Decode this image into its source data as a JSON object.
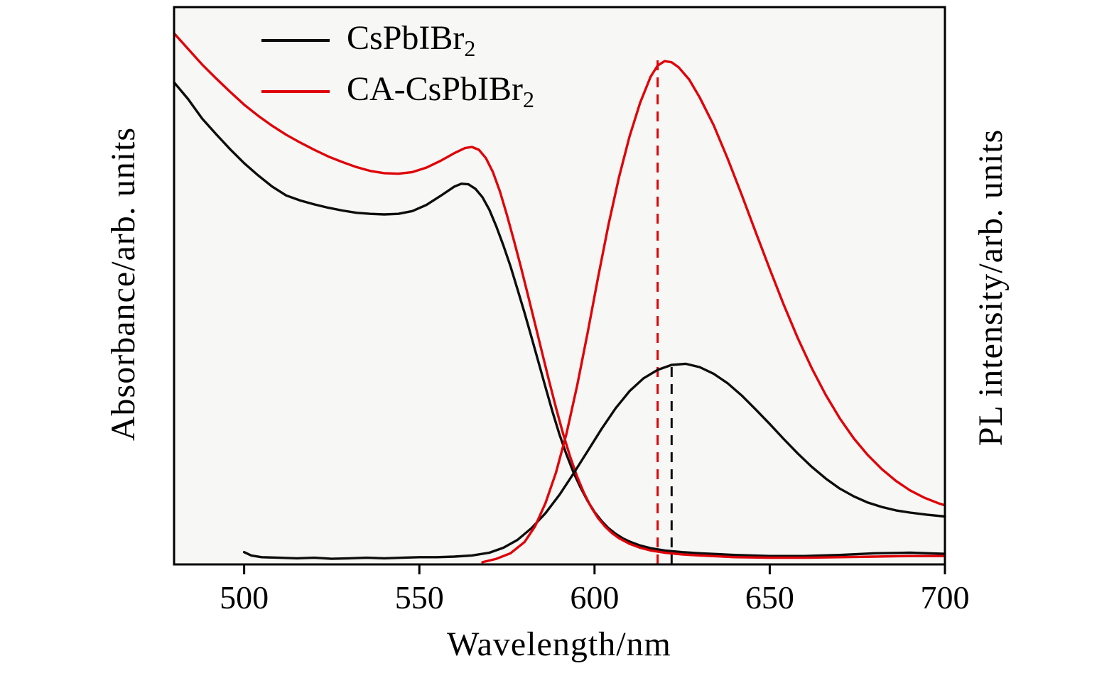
{
  "figure": {
    "background": "#ffffff",
    "plot_background": "#f7f7f5",
    "frame_color": "#000000",
    "accent_red": "#df0309",
    "accent_black": "#0d0d0d"
  },
  "chart_data": {
    "type": "line",
    "title": "",
    "xlabel": "Wavelength/nm",
    "ylabel_left": "Absorbance/arb. units",
    "ylabel_right": "PL intensity/arb. units",
    "xlim": [
      480,
      700
    ],
    "ylim": [
      0,
      1
    ],
    "x_ticks": [
      500,
      550,
      600,
      650,
      700
    ],
    "grid": false,
    "legend_position": "top-left",
    "legend": [
      {
        "label_base": "CsPbIBr",
        "label_sub": "2",
        "color": "#0d0d0d"
      },
      {
        "label_base": "CA-CsPbIBr",
        "label_sub": "2",
        "color": "#df0309"
      }
    ],
    "annotations": [
      {
        "type": "vline",
        "name": "pl-peak-CA-CsPbIBr2",
        "x": 618,
        "y0": 0,
        "y1": 0.91,
        "color": "#df0309",
        "dash": true
      },
      {
        "type": "vline",
        "name": "pl-peak-CsPbIBr2",
        "x": 622,
        "y0": 0,
        "y1": 0.362,
        "color": "#0d0d0d",
        "dash": true
      }
    ],
    "series": [
      {
        "name": "CsPbIBr2-absorbance",
        "axis": "left",
        "color": "#0d0d0d",
        "points": [
          [
            480,
            0.865
          ],
          [
            484,
            0.835
          ],
          [
            488,
            0.8
          ],
          [
            492,
            0.772
          ],
          [
            496,
            0.745
          ],
          [
            500,
            0.72
          ],
          [
            504,
            0.698
          ],
          [
            508,
            0.678
          ],
          [
            512,
            0.662
          ],
          [
            516,
            0.653
          ],
          [
            520,
            0.646
          ],
          [
            524,
            0.64
          ],
          [
            528,
            0.635
          ],
          [
            532,
            0.631
          ],
          [
            536,
            0.629
          ],
          [
            540,
            0.628
          ],
          [
            544,
            0.629
          ],
          [
            548,
            0.634
          ],
          [
            552,
            0.645
          ],
          [
            556,
            0.661
          ],
          [
            560,
            0.678
          ],
          [
            562,
            0.683
          ],
          [
            564,
            0.682
          ],
          [
            566,
            0.674
          ],
          [
            568,
            0.659
          ],
          [
            570,
            0.636
          ],
          [
            572,
            0.606
          ],
          [
            574,
            0.572
          ],
          [
            576,
            0.535
          ],
          [
            578,
            0.494
          ],
          [
            580,
            0.452
          ],
          [
            582,
            0.408
          ],
          [
            584,
            0.363
          ],
          [
            586,
            0.318
          ],
          [
            588,
            0.274
          ],
          [
            590,
            0.233
          ],
          [
            592,
            0.197
          ],
          [
            594,
            0.165
          ],
          [
            596,
            0.138
          ],
          [
            598,
            0.114
          ],
          [
            600,
            0.094
          ],
          [
            602,
            0.078
          ],
          [
            604,
            0.065
          ],
          [
            606,
            0.055
          ],
          [
            608,
            0.047
          ],
          [
            610,
            0.041
          ],
          [
            613,
            0.034
          ],
          [
            616,
            0.029
          ],
          [
            620,
            0.025
          ],
          [
            625,
            0.022
          ],
          [
            630,
            0.02
          ],
          [
            640,
            0.017
          ],
          [
            650,
            0.015
          ],
          [
            660,
            0.015
          ],
          [
            670,
            0.017
          ],
          [
            680,
            0.02
          ],
          [
            690,
            0.021
          ],
          [
            700,
            0.019
          ]
        ]
      },
      {
        "name": "CA-CsPbIBr2-absorbance",
        "axis": "left",
        "color": "#df0309",
        "points": [
          [
            480,
            0.953
          ],
          [
            484,
            0.925
          ],
          [
            488,
            0.897
          ],
          [
            492,
            0.872
          ],
          [
            496,
            0.848
          ],
          [
            500,
            0.825
          ],
          [
            504,
            0.805
          ],
          [
            508,
            0.787
          ],
          [
            512,
            0.771
          ],
          [
            516,
            0.757
          ],
          [
            520,
            0.744
          ],
          [
            524,
            0.732
          ],
          [
            528,
            0.722
          ],
          [
            532,
            0.713
          ],
          [
            536,
            0.706
          ],
          [
            540,
            0.702
          ],
          [
            544,
            0.701
          ],
          [
            548,
            0.704
          ],
          [
            552,
            0.712
          ],
          [
            556,
            0.724
          ],
          [
            560,
            0.738
          ],
          [
            563,
            0.747
          ],
          [
            565,
            0.749
          ],
          [
            567,
            0.744
          ],
          [
            569,
            0.729
          ],
          [
            571,
            0.704
          ],
          [
            573,
            0.669
          ],
          [
            575,
            0.627
          ],
          [
            577,
            0.581
          ],
          [
            579,
            0.533
          ],
          [
            581,
            0.483
          ],
          [
            583,
            0.432
          ],
          [
            585,
            0.381
          ],
          [
            587,
            0.33
          ],
          [
            589,
            0.281
          ],
          [
            591,
            0.235
          ],
          [
            593,
            0.194
          ],
          [
            595,
            0.158
          ],
          [
            597,
            0.128
          ],
          [
            599,
            0.103
          ],
          [
            601,
            0.083
          ],
          [
            603,
            0.068
          ],
          [
            605,
            0.056
          ],
          [
            607,
            0.047
          ],
          [
            610,
            0.037
          ],
          [
            613,
            0.03
          ],
          [
            616,
            0.025
          ],
          [
            620,
            0.021
          ],
          [
            625,
            0.018
          ],
          [
            630,
            0.016
          ],
          [
            640,
            0.013
          ],
          [
            650,
            0.012
          ],
          [
            660,
            0.012
          ],
          [
            670,
            0.013
          ],
          [
            680,
            0.014
          ],
          [
            690,
            0.015
          ],
          [
            700,
            0.015
          ]
        ]
      },
      {
        "name": "CsPbIBr2-pl",
        "axis": "right",
        "color": "#0d0d0d",
        "points": [
          [
            500,
            0.022
          ],
          [
            502,
            0.016
          ],
          [
            505,
            0.013
          ],
          [
            510,
            0.012
          ],
          [
            515,
            0.011
          ],
          [
            520,
            0.012
          ],
          [
            525,
            0.01
          ],
          [
            530,
            0.011
          ],
          [
            535,
            0.012
          ],
          [
            540,
            0.011
          ],
          [
            545,
            0.012
          ],
          [
            550,
            0.013
          ],
          [
            555,
            0.013
          ],
          [
            560,
            0.014
          ],
          [
            565,
            0.016
          ],
          [
            570,
            0.021
          ],
          [
            574,
            0.03
          ],
          [
            578,
            0.044
          ],
          [
            582,
            0.065
          ],
          [
            586,
            0.092
          ],
          [
            590,
            0.125
          ],
          [
            594,
            0.163
          ],
          [
            598,
            0.203
          ],
          [
            602,
            0.243
          ],
          [
            606,
            0.28
          ],
          [
            610,
            0.311
          ],
          [
            614,
            0.334
          ],
          [
            618,
            0.349
          ],
          [
            622,
            0.358
          ],
          [
            626,
            0.36
          ],
          [
            630,
            0.354
          ],
          [
            634,
            0.342
          ],
          [
            638,
            0.325
          ],
          [
            642,
            0.303
          ],
          [
            646,
            0.278
          ],
          [
            650,
            0.252
          ],
          [
            654,
            0.225
          ],
          [
            658,
            0.199
          ],
          [
            662,
            0.175
          ],
          [
            666,
            0.154
          ],
          [
            670,
            0.136
          ],
          [
            674,
            0.122
          ],
          [
            678,
            0.111
          ],
          [
            682,
            0.103
          ],
          [
            686,
            0.097
          ],
          [
            690,
            0.093
          ],
          [
            695,
            0.089
          ],
          [
            700,
            0.086
          ]
        ]
      },
      {
        "name": "CA-CsPbIBr2-pl",
        "axis": "right",
        "color": "#df0309",
        "points": [
          [
            568,
            0.004
          ],
          [
            572,
            0.01
          ],
          [
            576,
            0.02
          ],
          [
            580,
            0.04
          ],
          [
            583,
            0.068
          ],
          [
            586,
            0.11
          ],
          [
            589,
            0.165
          ],
          [
            592,
            0.235
          ],
          [
            595,
            0.32
          ],
          [
            598,
            0.415
          ],
          [
            601,
            0.515
          ],
          [
            604,
            0.61
          ],
          [
            607,
            0.695
          ],
          [
            610,
            0.768
          ],
          [
            613,
            0.828
          ],
          [
            616,
            0.875
          ],
          [
            618,
            0.895
          ],
          [
            620,
            0.903
          ],
          [
            622,
            0.901
          ],
          [
            624,
            0.892
          ],
          [
            627,
            0.87
          ],
          [
            630,
            0.838
          ],
          [
            634,
            0.788
          ],
          [
            638,
            0.728
          ],
          [
            642,
            0.663
          ],
          [
            646,
            0.596
          ],
          [
            650,
            0.53
          ],
          [
            654,
            0.466
          ],
          [
            658,
            0.406
          ],
          [
            662,
            0.352
          ],
          [
            666,
            0.304
          ],
          [
            670,
            0.262
          ],
          [
            674,
            0.226
          ],
          [
            678,
            0.196
          ],
          [
            682,
            0.171
          ],
          [
            686,
            0.15
          ],
          [
            690,
            0.133
          ],
          [
            694,
            0.12
          ],
          [
            698,
            0.11
          ],
          [
            700,
            0.106
          ]
        ]
      }
    ]
  }
}
